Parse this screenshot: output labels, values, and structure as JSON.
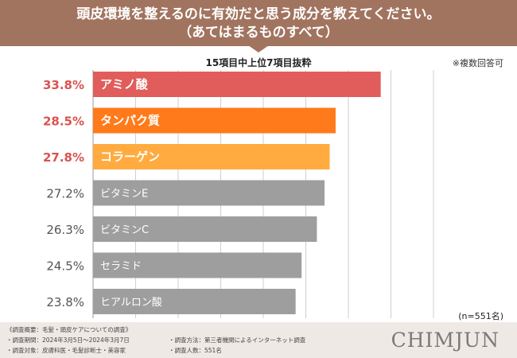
{
  "header": {
    "title_line1": "頭皮環境を整えるのに有効だと思う成分を教えてください。",
    "title_line2": "（あてはまるものすべて）"
  },
  "subtitle": "15項目中上位7項目抜粋",
  "note": "※複数回答可",
  "sample_size": "(n=551名)",
  "colors": {
    "header": "#a1745f",
    "highlight_label": "#d9534f",
    "normal_label": "#555555",
    "bar_1": "#e05d5b",
    "bar_2": "#ff7a1a",
    "bar_3": "#ffab40",
    "bar_other": "#9e9e9e",
    "grid": "#cfcfcf"
  },
  "chart_data": {
    "type": "bar",
    "orientation": "horizontal",
    "categories": [
      "アミノ酸",
      "タンパク質",
      "コラーゲン",
      "ビタミンE",
      "ビタミンC",
      "セラミド",
      "ヒアルロン酸"
    ],
    "values": [
      33.8,
      28.5,
      27.8,
      27.2,
      26.3,
      24.5,
      23.8
    ],
    "value_labels": [
      "33.8%",
      "28.5%",
      "27.8%",
      "27.2%",
      "26.3%",
      "24.5%",
      "23.8%"
    ],
    "xlim": [
      0,
      40
    ],
    "grid": true,
    "unit": "%"
  },
  "footer": {
    "survey_overview": "《調査概要：毛髪・頭皮ケアについての調査》",
    "period": "・調査期間：2024年3月5日〜2024年3月7日",
    "subjects": "・調査対象：皮膚科医・毛髪診断士・美容家",
    "method": "・調査方法：第三者機関によるインターネット調査",
    "count": "・調査人数：551名",
    "logo": "CHIMJUN"
  }
}
